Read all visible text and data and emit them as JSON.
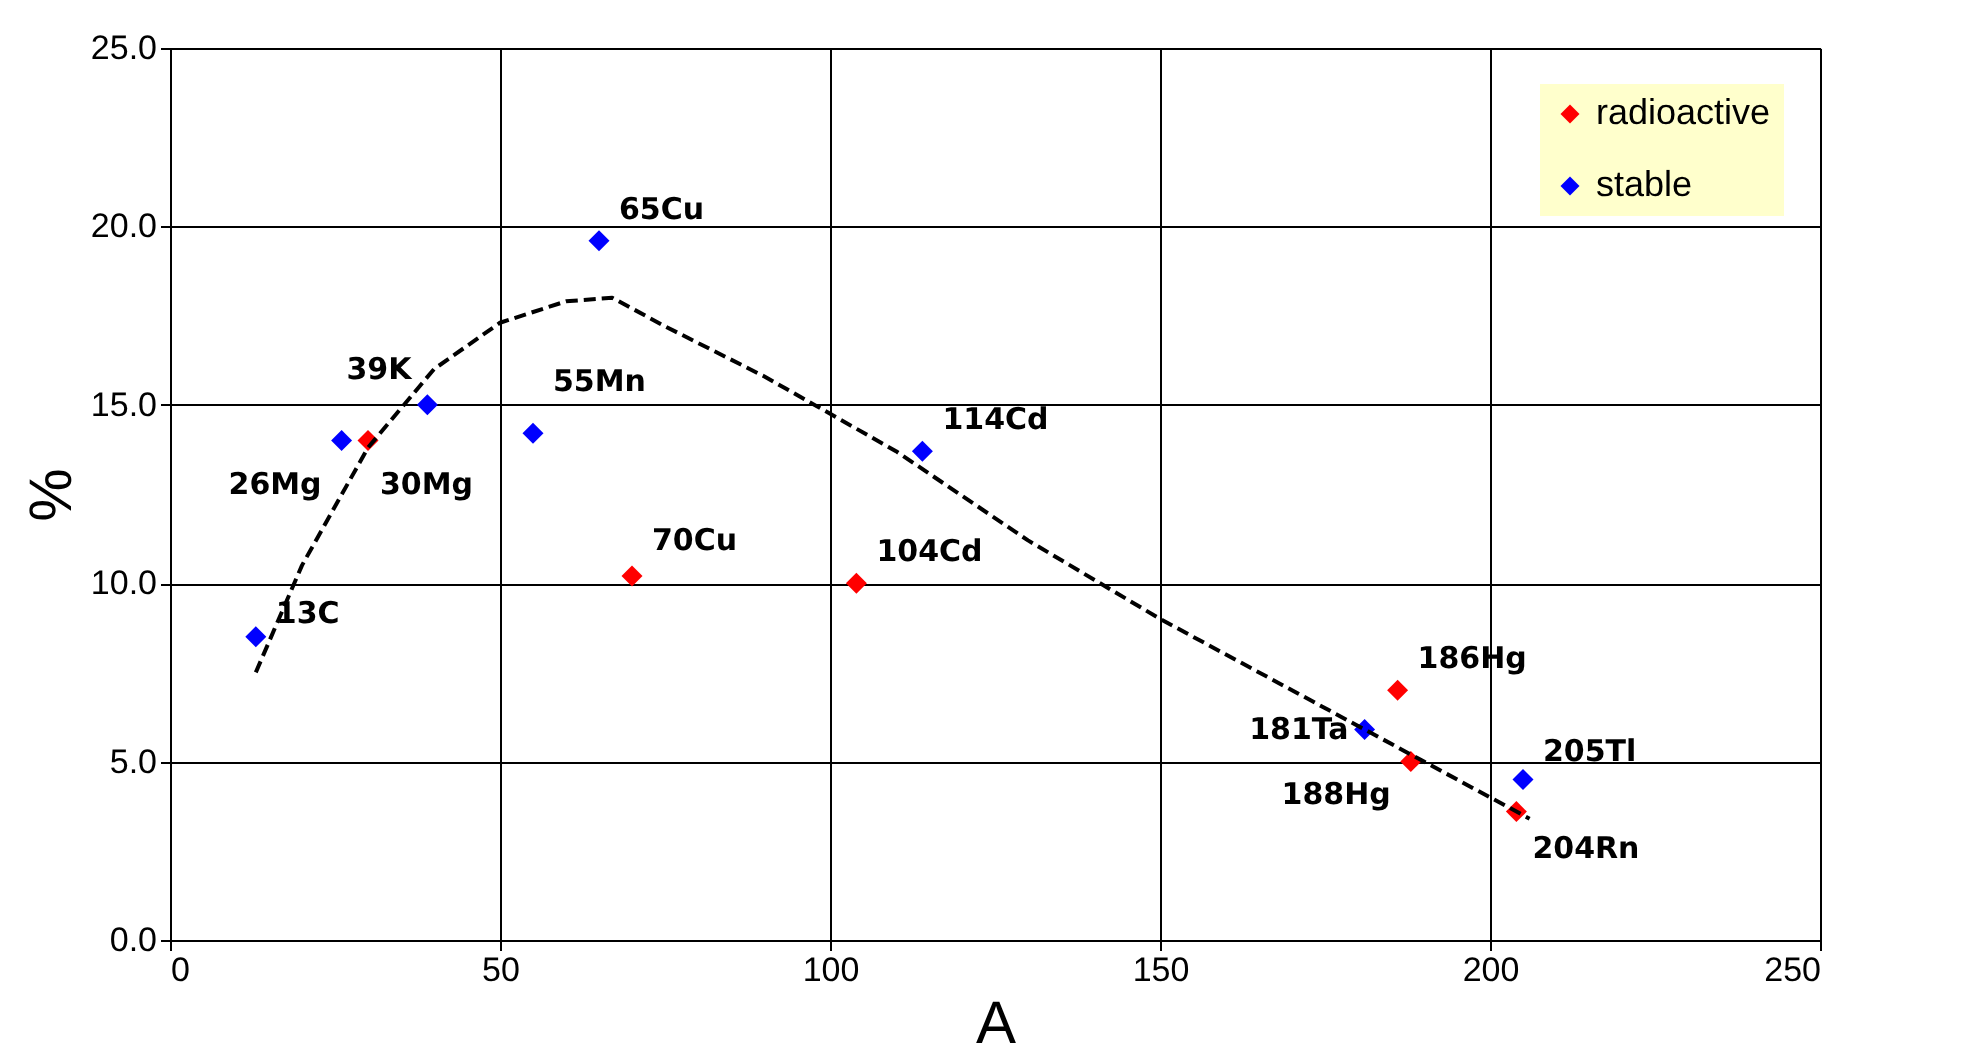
{
  "chart_data": {
    "type": "scatter",
    "xlabel": "A",
    "ylabel": "%",
    "xlim": [
      0,
      250
    ],
    "xticks": [
      0,
      50,
      100,
      150,
      200,
      250
    ],
    "ylim": [
      0,
      25
    ],
    "yticks": [
      {
        "value": 0,
        "label": "0.0"
      },
      {
        "value": 5,
        "label": "5.0"
      },
      {
        "value": 10,
        "label": "10.0"
      },
      {
        "value": 15,
        "label": "15.0"
      },
      {
        "value": 20,
        "label": "20.0"
      },
      {
        "value": 25,
        "label": "25.0"
      }
    ],
    "grid": true,
    "legend": "top right",
    "marker": "diamond",
    "series": [
      {
        "name": "radioactive",
        "color": "#ff0000",
        "x": [
          30,
          70,
          104,
          186,
          188,
          204
        ],
        "values": [
          14.0,
          10.2,
          10.0,
          7.0,
          5.0,
          3.6
        ]
      },
      {
        "name": "stable",
        "color": "#0000ff",
        "x": [
          13,
          26,
          39,
          55,
          65,
          114,
          181,
          205
        ],
        "values": [
          8.5,
          14.0,
          15.0,
          14.2,
          19.6,
          13.7,
          5.9,
          4.5
        ]
      },
      {
        "type": "line",
        "line_style": "dashed",
        "marker": "none",
        "color": "#000000",
        "x": [
          13,
          20,
          30,
          40,
          50,
          60,
          67,
          75,
          90,
          110,
          130,
          150,
          170,
          190,
          206
        ],
        "values": [
          7.5,
          10.5,
          13.8,
          16.0,
          17.3,
          17.9,
          18.0,
          17.2,
          15.8,
          13.7,
          11.2,
          9.0,
          7.0,
          5.0,
          3.4
        ]
      }
    ],
    "annotations": [
      {
        "text": "13C",
        "x": 13,
        "y": 8.5
      },
      {
        "text": "26Mg",
        "x": 26,
        "y": 14.0
      },
      {
        "text": "30Mg",
        "x": 30,
        "y": 14.0
      },
      {
        "text": "39K",
        "x": 39,
        "y": 15.0
      },
      {
        "text": "55Mn",
        "x": 55,
        "y": 14.2
      },
      {
        "text": "65Cu",
        "x": 65,
        "y": 19.6
      },
      {
        "text": "70Cu",
        "x": 70,
        "y": 10.2
      },
      {
        "text": "104Cd",
        "x": 104,
        "y": 10.0
      },
      {
        "text": "114Cd",
        "x": 114,
        "y": 13.7
      },
      {
        "text": "181Ta",
        "x": 181,
        "y": 5.9
      },
      {
        "text": "186Hg",
        "x": 186,
        "y": 7.0
      },
      {
        "text": "188Hg",
        "x": 188,
        "y": 5.0
      },
      {
        "text": "204Rn",
        "x": 204,
        "y": 3.6
      },
      {
        "text": "205Tl",
        "x": 205,
        "y": 4.5
      }
    ]
  }
}
